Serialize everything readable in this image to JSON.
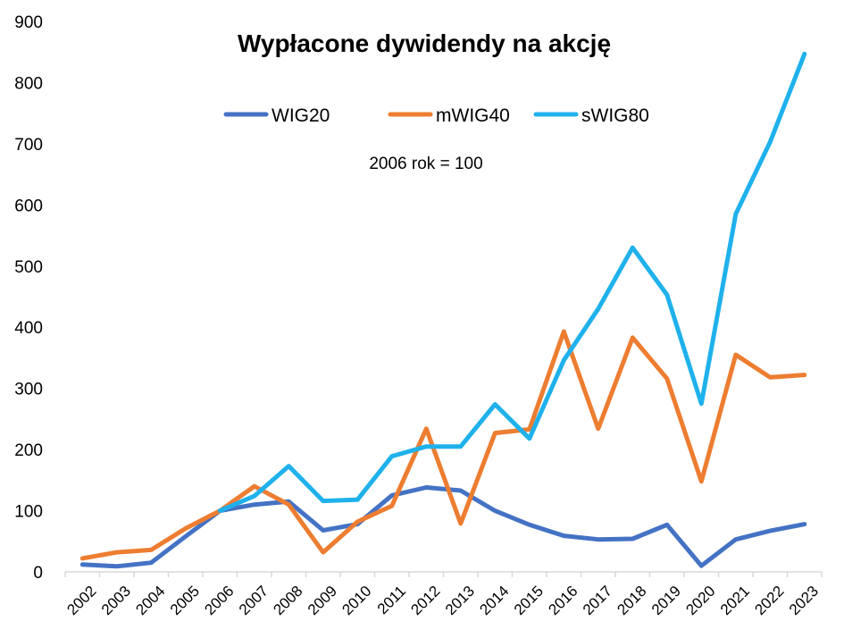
{
  "chart_data": {
    "type": "line",
    "title": "Wypłacone dywidendy na akcję",
    "annotation": "2006 rok = 100",
    "xlabel": "",
    "ylabel": "",
    "ylim": [
      0,
      900
    ],
    "yticks": [
      0,
      100,
      200,
      300,
      400,
      500,
      600,
      700,
      800,
      900
    ],
    "grid": false,
    "legend_position": "top-center",
    "categories": [
      "2002",
      "2003",
      "2004",
      "2005",
      "2006",
      "2007",
      "2008",
      "2009",
      "2010",
      "2011",
      "2012",
      "2013",
      "2014",
      "2015",
      "2016",
      "2017",
      "2018",
      "2019",
      "2020",
      "2021",
      "2022",
      "2023"
    ],
    "series": [
      {
        "name": "WIG20",
        "color": "#4472C4",
        "values": [
          12,
          9,
          15,
          58,
          100,
          110,
          115,
          68,
          78,
          125,
          138,
          133,
          100,
          77,
          59,
          53,
          54,
          77,
          10,
          53,
          67,
          78
        ]
      },
      {
        "name": "mWIG40",
        "color": "#ED7D31",
        "values": [
          22,
          32,
          36,
          71,
          100,
          140,
          110,
          32,
          82,
          108,
          234,
          79,
          227,
          233,
          393,
          234,
          383,
          316,
          148,
          355,
          318,
          322
        ]
      },
      {
        "name": "sWIG80",
        "color": "#1FB1EC",
        "values": [
          null,
          null,
          null,
          null,
          100,
          124,
          173,
          116,
          118,
          189,
          205,
          205,
          274,
          218,
          346,
          430,
          530,
          453,
          275,
          585,
          703,
          847
        ]
      }
    ]
  }
}
